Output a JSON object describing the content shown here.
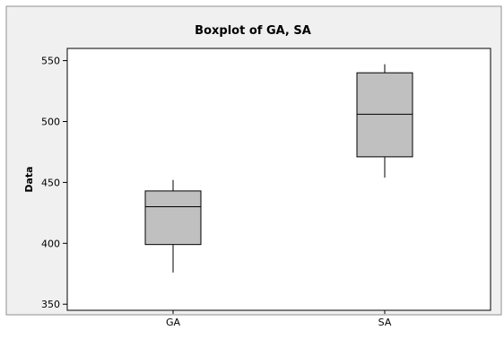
{
  "chart_data": {
    "type": "boxplot",
    "title": "Boxplot of GA, SA",
    "xlabel": "",
    "ylabel": "Data",
    "ylim": [
      345,
      560
    ],
    "yticks": [
      350,
      400,
      450,
      500,
      550
    ],
    "grid": false,
    "categories": [
      "GA",
      "SA"
    ],
    "series": [
      {
        "category": "GA",
        "min": 376,
        "q1": 399,
        "median": 430,
        "q3": 443,
        "max": 452
      },
      {
        "category": "SA",
        "min": 454,
        "q1": 471,
        "median": 506,
        "q3": 540,
        "max": 547
      }
    ],
    "colors": {
      "box_fill": "#c0c0c0",
      "frame_bg": "#f0f0f0",
      "plot_bg": "#ffffff",
      "stroke": "#000000"
    }
  }
}
